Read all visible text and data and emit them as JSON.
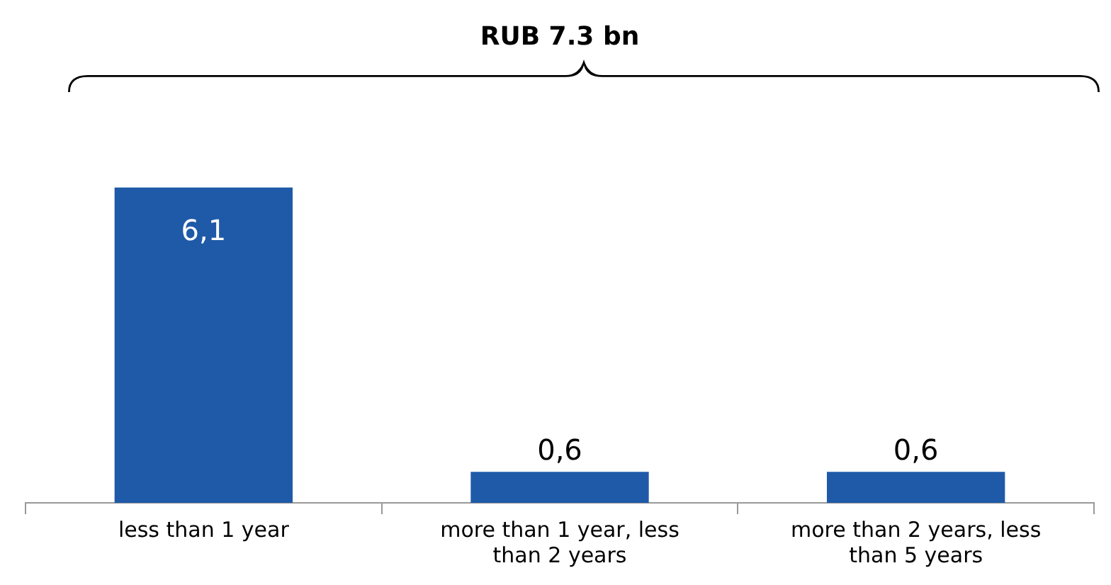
{
  "chart_data": {
    "type": "bar",
    "title": "RUB 7.3 bn",
    "categories": [
      "less than 1 year",
      "more than 1 year, less than 2 years",
      "more than 2 years, less than 5 years"
    ],
    "values": [
      6.1,
      0.6,
      0.6
    ],
    "value_labels": [
      "6,1",
      "0,6",
      "0,6"
    ],
    "color": "#1f5aa8",
    "grid": false,
    "legend": false
  }
}
